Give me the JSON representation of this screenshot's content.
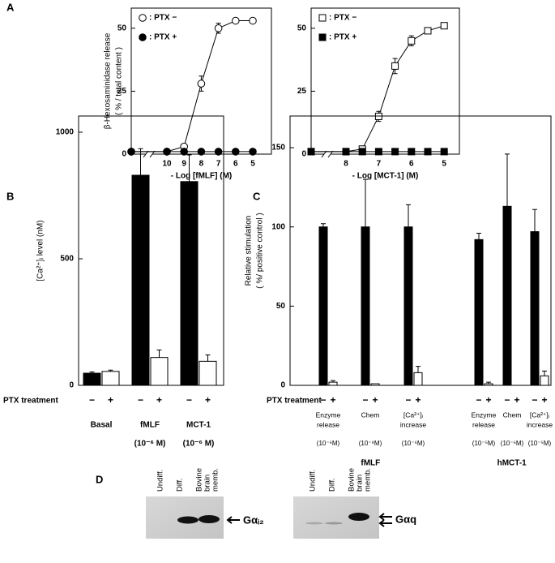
{
  "panel_labels": [
    "A",
    "B",
    "C",
    "D"
  ],
  "chart_data": [
    {
      "type": "line",
      "ylabel": [
        "β-Hexosaminidase release",
        "( % / total content )"
      ],
      "xlabel": "- Log [fMLF]  (M)",
      "categories": [
        null,
        "10",
        "9",
        "8",
        "7",
        "6",
        "5"
      ],
      "ylim": [
        0,
        58
      ],
      "yticks": [
        0,
        25,
        50
      ],
      "legend": "upper left",
      "series": [
        {
          "name": ": PTX −",
          "marker": "open-circle",
          "color": "#000000",
          "values": [
            1,
            1,
            3,
            28,
            50,
            53,
            53
          ],
          "errors": [
            0,
            0,
            0,
            3,
            2,
            0,
            0
          ]
        },
        {
          "name": ": PTX +",
          "marker": "filled-circle",
          "color": "#000000",
          "values": [
            1,
            1,
            1,
            1,
            1,
            1,
            1
          ],
          "errors": [
            0,
            0,
            0,
            0,
            0,
            0,
            0
          ]
        }
      ]
    },
    {
      "type": "line",
      "xlabel": "- Log [MCT-1]  (M)",
      "categories": [
        null,
        "8",
        null,
        "7",
        null,
        "6",
        null,
        "5"
      ],
      "ylim": [
        0,
        58
      ],
      "yticks": [
        0,
        25,
        50
      ],
      "legend": "upper left",
      "series": [
        {
          "name": ": PTX −",
          "marker": "open-square",
          "color": "#000000",
          "values": [
            1,
            1,
            2,
            15,
            35,
            45,
            49,
            51
          ],
          "errors": [
            0,
            0,
            0,
            2,
            3,
            2,
            1,
            0
          ]
        },
        {
          "name": ": PTX +",
          "marker": "filled-square",
          "color": "#000000",
          "values": [
            1,
            1,
            1,
            1,
            1,
            1,
            1,
            1
          ],
          "errors": [
            0,
            0,
            0,
            0,
            0,
            0,
            0,
            0
          ]
        }
      ]
    },
    {
      "type": "bar",
      "ylabel": [
        "[Ca²⁺]ᵢ  level  (nM)"
      ],
      "x_row_label": "PTX treatment",
      "categories": [
        [
          "Basal"
        ],
        [
          "fMLF"
        ],
        [
          "MCT-1"
        ]
      ],
      "category_notes": [
        null,
        "(10⁻⁶ M)",
        "(10⁻⁶ M)"
      ],
      "ylim": [
        0,
        1064
      ],
      "yticks": [
        0,
        500,
        1000
      ],
      "series": [
        {
          "name": "−",
          "color": "#000000",
          "values": [
            48,
            830,
            805
          ],
          "errors": [
            5,
            105,
            105
          ]
        },
        {
          "name": "+",
          "color": "#ffffff",
          "values": [
            55,
            110,
            95
          ],
          "errors": [
            5,
            30,
            25
          ]
        }
      ]
    },
    {
      "type": "bar",
      "ylabel": [
        "Relative stimulation",
        "( %/ positive control )"
      ],
      "x_row_label": "PTX treatment",
      "categories": [
        [
          "Enzyme",
          "release"
        ],
        [
          "Chem"
        ],
        [
          "[Ca²⁺]ᵢ",
          "increase"
        ],
        [
          "Enzyme",
          "release"
        ],
        [
          "Chem"
        ],
        [
          "[Ca²⁺]ᵢ",
          "increase"
        ]
      ],
      "category_notes": [
        "(10⁻⁶M)",
        "(10⁻⁹M)",
        "(10⁻⁶M)",
        "(10⁻⁵M)",
        "(10⁻⁶M)",
        "(10⁻⁵M)"
      ],
      "groups": [
        "fMLF",
        "hMCT-1"
      ],
      "ylim": [
        0,
        170
      ],
      "yticks": [
        0,
        50,
        100,
        150
      ],
      "series": [
        {
          "name": "−",
          "color": "#000000",
          "values": [
            100,
            100,
            100,
            92,
            113,
            97
          ],
          "errors": [
            2,
            30,
            14,
            4,
            33,
            14
          ]
        },
        {
          "name": "+",
          "color": "#ffffff",
          "values": [
            2,
            1,
            8,
            1,
            0,
            6
          ],
          "errors": [
            1,
            0,
            4,
            1,
            0,
            3
          ]
        }
      ]
    }
  ],
  "blots": [
    {
      "lanes": [
        [
          "Undiff."
        ],
        [
          "Diff."
        ],
        [
          "Bovine",
          "brain",
          "memb."
        ]
      ],
      "protein": "Gαᵢ₂"
    },
    {
      "lanes": [
        [
          "Undiff."
        ],
        [
          "Diff."
        ],
        [
          "Bovine",
          "brain",
          "memb."
        ]
      ],
      "protein": "Gαq"
    }
  ]
}
